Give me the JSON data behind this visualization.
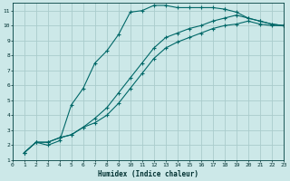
{
  "background_color": "#cce8e8",
  "grid_color": "#aacccc",
  "line_color": "#006868",
  "xlabel": "Humidex (Indice chaleur)",
  "xlim": [
    0,
    23
  ],
  "ylim": [
    1,
    11.5
  ],
  "xticks": [
    0,
    1,
    2,
    3,
    4,
    5,
    6,
    7,
    8,
    9,
    10,
    11,
    12,
    13,
    14,
    15,
    16,
    17,
    18,
    19,
    20,
    21,
    22,
    23
  ],
  "yticks": [
    1,
    2,
    3,
    4,
    5,
    6,
    7,
    8,
    9,
    10,
    11
  ],
  "curve1_x": [
    1,
    2,
    3,
    4,
    5,
    6,
    7,
    8,
    9,
    10,
    11,
    12,
    13,
    14,
    15,
    16,
    17,
    18
  ],
  "curve1_y": [
    1.5,
    2.2,
    2.0,
    2.3,
    4.7,
    5.8,
    7.5,
    8.3,
    9.4,
    10.9,
    11.0,
    11.35,
    11.35,
    11.2,
    11.2,
    11.2,
    11.2,
    11.1
  ],
  "curve2_x": [
    1,
    2,
    3,
    4,
    5,
    6,
    7,
    8,
    9,
    10,
    11,
    12,
    13,
    14,
    15,
    16,
    17,
    18,
    19,
    20,
    21,
    22,
    23
  ],
  "curve2_y": [
    1.5,
    2.2,
    2.2,
    2.5,
    2.7,
    3.2,
    3.8,
    4.5,
    5.5,
    6.5,
    7.5,
    8.5,
    9.2,
    9.5,
    9.8,
    10.0,
    10.3,
    10.5,
    10.7,
    10.5,
    10.3,
    10.1,
    10.0
  ],
  "curve3_x": [
    1,
    2,
    3,
    4,
    5,
    6,
    7,
    8,
    9,
    10,
    11,
    12,
    13,
    14,
    15,
    16,
    17,
    18,
    19,
    20,
    21,
    22,
    23
  ],
  "curve3_y": [
    1.5,
    2.2,
    2.2,
    2.5,
    2.7,
    3.2,
    3.5,
    4.0,
    4.8,
    5.8,
    6.8,
    7.8,
    8.5,
    8.9,
    9.2,
    9.5,
    9.8,
    10.0,
    10.1,
    10.3,
    10.1,
    10.0,
    10.0
  ],
  "curve1_end_x": [
    18,
    19,
    20,
    21,
    22,
    23
  ],
  "curve1_end_y": [
    11.1,
    10.9,
    10.5,
    10.3,
    10.1,
    10.0
  ]
}
